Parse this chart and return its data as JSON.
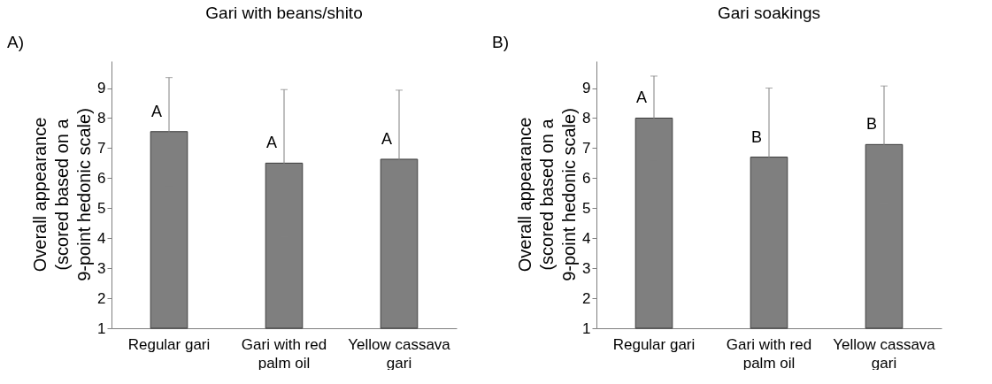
{
  "chart_data": [
    {
      "type": "bar",
      "title": "Gari with beans/shito",
      "ylabel": "Overall appearance (scored based on a 9-point hedonic scale)",
      "categories": [
        "Regular gari",
        "Gari with red palm oil",
        "Yellow cassava gari"
      ],
      "values": [
        7.55,
        6.5,
        6.63
      ],
      "errors": [
        1.8,
        2.45,
        2.3
      ],
      "color": "#7f7f7f",
      "ylim": [
        1,
        9.9
      ],
      "yticks": [
        1,
        2,
        3,
        4,
        5,
        6,
        7,
        8,
        9
      ],
      "grid": false,
      "annotations": [
        "A)",
        {
          "text": "A",
          "x": "Regular gari",
          "y": 7.55
        },
        {
          "text": "A",
          "x": "Gari with red palm oil",
          "y": 6.5
        },
        {
          "text": "A",
          "x": "Yellow cassava gari",
          "y": 6.63
        }
      ]
    },
    {
      "type": "bar",
      "title": "Gari soakings",
      "ylabel": "Overall appearance (scored based on a 9-point hedonic scale)",
      "categories": [
        "Regular gari",
        "Gari with red palm oil",
        "Yellow cassava gari"
      ],
      "values": [
        8.0,
        6.7,
        7.12
      ],
      "errors": [
        1.4,
        2.3,
        1.95
      ],
      "color": "#7f7f7f",
      "ylim": [
        1,
        9.9
      ],
      "yticks": [
        1,
        2,
        3,
        4,
        5,
        6,
        7,
        8,
        9
      ],
      "grid": false,
      "annotations": [
        "B)",
        {
          "text": "A",
          "x": "Regular gari",
          "y": 8.0
        },
        {
          "text": "B",
          "x": "Gari with red palm oil",
          "y": 6.7
        },
        {
          "text": "B",
          "x": "Yellow cassava gari",
          "y": 7.12
        }
      ]
    }
  ]
}
